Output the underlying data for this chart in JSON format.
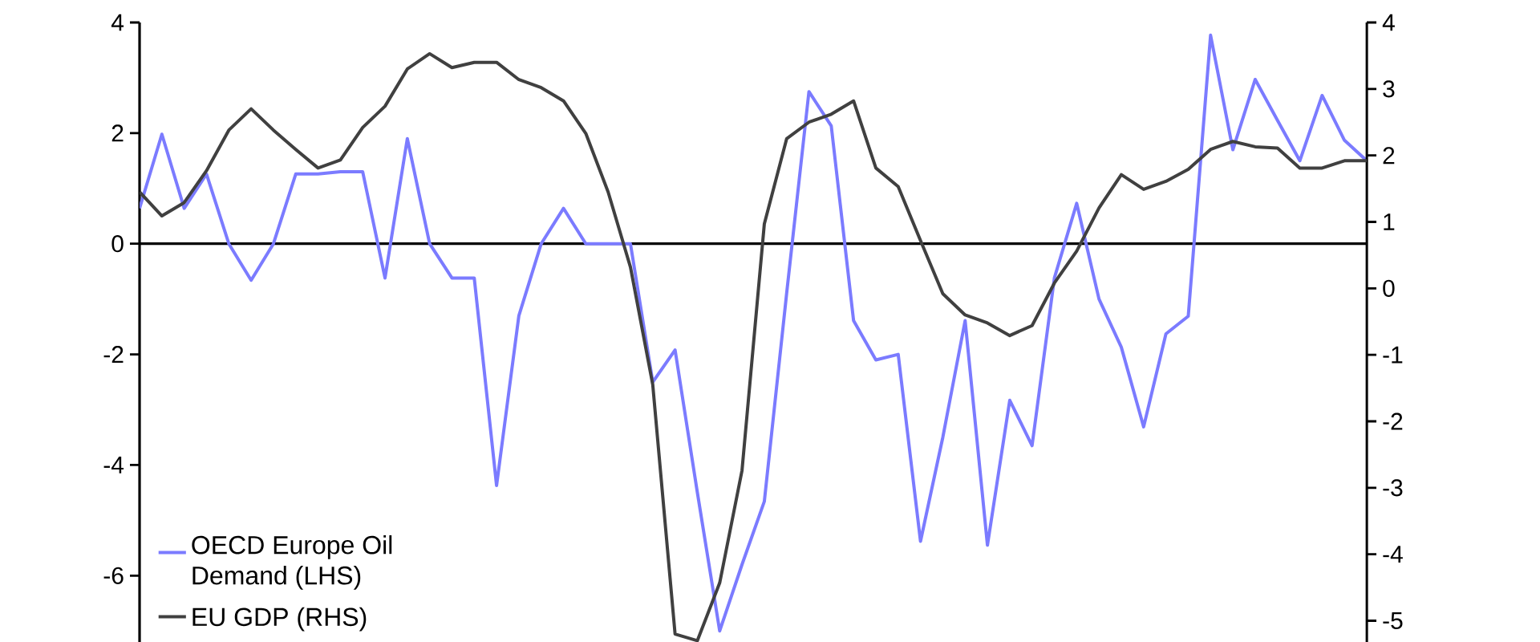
{
  "chart_data": {
    "type": "line",
    "categories": [
      null,
      null,
      null,
      null,
      null,
      null,
      null,
      null,
      null,
      null,
      null,
      null,
      null,
      null,
      null,
      null,
      null,
      null,
      null,
      null,
      null,
      null,
      null,
      null,
      null,
      null,
      null,
      null,
      null,
      null,
      null,
      null,
      null,
      null,
      null,
      null,
      null,
      null,
      null,
      null,
      null,
      null,
      null,
      null,
      null,
      null,
      null,
      null,
      null,
      null,
      null,
      null,
      null,
      null,
      null,
      null
    ],
    "series": [
      {
        "name": "OECD Europe Oil Demand (LHS)",
        "color": "#7b7bff",
        "values": [
          0.64,
          1.98,
          0.64,
          1.26,
          0,
          -0.66,
          0,
          1.26,
          1.26,
          1.3,
          1.3,
          -0.62,
          1.9,
          0,
          -0.62,
          -0.62,
          -4.37,
          -1.3,
          0,
          0.64,
          0,
          0,
          0,
          -2.5,
          -1.92,
          -4.5,
          -7.0,
          -5.8,
          -4.66,
          -0.9,
          2.75,
          2.13,
          -1.39,
          -2.1,
          -2.0,
          -5.38,
          -3.5,
          -1.39,
          -5.45,
          -2.83,
          -3.65,
          -0.62,
          0.73,
          -1.0,
          -1.87,
          -3.31,
          -1.63,
          -1.31,
          3.77,
          1.7,
          2.97,
          2.23,
          1.5,
          2.68,
          1.87,
          1.5
        ]
      },
      {
        "name": "EU GDP (RHS)",
        "color": "#404040",
        "axis": "y2",
        "values": [
          1.45,
          1.09,
          1.29,
          1.77,
          2.38,
          2.7,
          2.38,
          2.09,
          1.81,
          1.93,
          2.42,
          2.74,
          3.3,
          3.53,
          3.32,
          3.4,
          3.4,
          3.14,
          3.02,
          2.82,
          2.33,
          1.45,
          0.32,
          -1.45,
          -5.2,
          -5.3,
          -4.43,
          -2.74,
          0.97,
          2.25,
          2.5,
          2.62,
          2.82,
          1.81,
          1.53,
          0.72,
          -0.08,
          -0.4,
          -0.52,
          -0.71,
          -0.56,
          0.08,
          0.56,
          1.21,
          1.71,
          1.49,
          1.61,
          1.79,
          2.09,
          2.21,
          2.13,
          2.11,
          1.81,
          1.81,
          1.92,
          1.92
        ]
      }
    ],
    "ylim": [
      -7.2,
      4
    ],
    "yticks": [
      -6,
      -4,
      -2,
      0,
      2,
      4
    ],
    "y2lim": [
      -5.32,
      4
    ],
    "y2ticks": [
      -5,
      -4,
      -3,
      -2,
      -1,
      0,
      1,
      2,
      3,
      4
    ],
    "legend": "bottom left",
    "marker": "none",
    "line_style": "solid"
  }
}
